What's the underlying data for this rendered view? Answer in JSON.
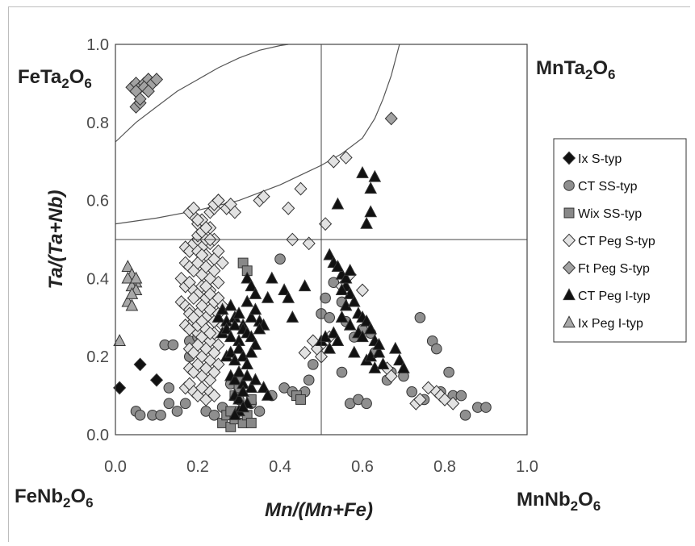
{
  "chart_data": {
    "type": "scatter",
    "title": "",
    "xlabel": "Mn/(Mn+Fe)",
    "ylabel": "Ta/(Ta+Nb)",
    "xlim": [
      0,
      1
    ],
    "ylim": [
      0,
      1
    ],
    "x_ticks": [
      "0.0",
      "0.2",
      "0.4",
      "0.6",
      "0.8",
      "1.0"
    ],
    "y_ticks": [
      "0.0",
      "0.2",
      "0.4",
      "0.6",
      "0.8",
      "1.0"
    ],
    "grid": false,
    "legend_position": "right",
    "corner_labels": {
      "top_left": {
        "base": "FeTa",
        "sub1": "2",
        "mid": "O",
        "sub2": "6"
      },
      "top_right": {
        "base": "MnTa",
        "sub1": "2",
        "mid": "O",
        "sub2": "6"
      },
      "bottom_left": {
        "base": "FeNb",
        "sub1": "2",
        "mid": "O",
        "sub2": "6"
      },
      "bottom_right": {
        "base": "MnNb",
        "sub1": "2",
        "mid": "O",
        "sub2": "6"
      }
    },
    "reference_lines": {
      "x": 0.5,
      "y": 0.5
    },
    "boundary_curves": [
      {
        "x": [
          0.0,
          0.05,
          0.1,
          0.15,
          0.2,
          0.25,
          0.3,
          0.35,
          0.4,
          0.42
        ],
        "y": [
          0.75,
          0.8,
          0.84,
          0.88,
          0.91,
          0.94,
          0.965,
          0.985,
          0.997,
          1.0
        ]
      },
      {
        "x": [
          0.0,
          0.1,
          0.2,
          0.3,
          0.4,
          0.5,
          0.55,
          0.6,
          0.63,
          0.65,
          0.67,
          0.68,
          0.69
        ],
        "y": [
          0.54,
          0.555,
          0.575,
          0.6,
          0.64,
          0.69,
          0.72,
          0.76,
          0.81,
          0.86,
          0.92,
          0.96,
          1.0
        ]
      }
    ],
    "series": [
      {
        "name": "Ix S-typ",
        "marker": "diamond",
        "fill": "#111111",
        "x": [
          0.01,
          0.06,
          0.1
        ],
        "y": [
          0.12,
          0.18,
          0.14
        ]
      },
      {
        "name": "CT SS-typ",
        "marker": "circle",
        "fill": "#8f8f8f",
        "x": [
          0.05,
          0.06,
          0.09,
          0.11,
          0.12,
          0.13,
          0.14,
          0.15,
          0.17,
          0.18,
          0.2,
          0.22,
          0.24,
          0.26,
          0.28,
          0.3,
          0.33,
          0.35,
          0.38,
          0.4,
          0.41,
          0.43,
          0.46,
          0.47,
          0.48,
          0.5,
          0.51,
          0.52,
          0.53,
          0.55,
          0.56,
          0.57,
          0.58,
          0.59,
          0.6,
          0.62,
          0.63,
          0.66,
          0.67,
          0.7,
          0.72,
          0.74,
          0.75,
          0.77,
          0.78,
          0.79,
          0.81,
          0.82,
          0.84,
          0.85,
          0.88,
          0.9,
          0.13,
          0.18,
          0.55,
          0.61
        ],
        "y": [
          0.06,
          0.05,
          0.05,
          0.05,
          0.23,
          0.08,
          0.23,
          0.06,
          0.08,
          0.24,
          0.25,
          0.06,
          0.05,
          0.07,
          0.13,
          0.09,
          0.08,
          0.06,
          0.1,
          0.45,
          0.12,
          0.11,
          0.11,
          0.14,
          0.18,
          0.31,
          0.35,
          0.3,
          0.39,
          0.34,
          0.29,
          0.08,
          0.25,
          0.09,
          0.27,
          0.26,
          0.21,
          0.14,
          0.16,
          0.15,
          0.11,
          0.3,
          0.09,
          0.24,
          0.22,
          0.11,
          0.16,
          0.1,
          0.1,
          0.05,
          0.07,
          0.07,
          0.12,
          0.2,
          0.16,
          0.08
        ]
      },
      {
        "name": "Wix SS-typ",
        "marker": "square",
        "fill": "#888888",
        "x": [
          0.26,
          0.27,
          0.28,
          0.29,
          0.3,
          0.31,
          0.32,
          0.33,
          0.29,
          0.3,
          0.31,
          0.32,
          0.33,
          0.44,
          0.45,
          0.3,
          0.28
        ],
        "y": [
          0.03,
          0.05,
          0.02,
          0.04,
          0.06,
          0.03,
          0.05,
          0.03,
          0.1,
          0.14,
          0.44,
          0.42,
          0.09,
          0.1,
          0.09,
          0.12,
          0.06
        ]
      },
      {
        "name": "CT Peg S-typ",
        "marker": "diamond",
        "fill": "#e2e2e2",
        "x": [
          0.17,
          0.18,
          0.19,
          0.2,
          0.21,
          0.22,
          0.23,
          0.24,
          0.25,
          0.26,
          0.17,
          0.18,
          0.19,
          0.2,
          0.21,
          0.22,
          0.23,
          0.24,
          0.25,
          0.16,
          0.17,
          0.18,
          0.19,
          0.2,
          0.21,
          0.22,
          0.23,
          0.24,
          0.16,
          0.17,
          0.18,
          0.19,
          0.2,
          0.21,
          0.22,
          0.23,
          0.24,
          0.25,
          0.26,
          0.17,
          0.18,
          0.19,
          0.2,
          0.21,
          0.22,
          0.23,
          0.24,
          0.25,
          0.18,
          0.19,
          0.2,
          0.21,
          0.22,
          0.23,
          0.24,
          0.25,
          0.18,
          0.19,
          0.2,
          0.21,
          0.22,
          0.23,
          0.24,
          0.17,
          0.18,
          0.19,
          0.2,
          0.21,
          0.22,
          0.23,
          0.24,
          0.19,
          0.2,
          0.21,
          0.22,
          0.23,
          0.24,
          0.25,
          0.2,
          0.21,
          0.22,
          0.23,
          0.24,
          0.18,
          0.19,
          0.2,
          0.21,
          0.22,
          0.23,
          0.2,
          0.21,
          0.24,
          0.25,
          0.27,
          0.28,
          0.29,
          0.35,
          0.36,
          0.42,
          0.45,
          0.43,
          0.47,
          0.46,
          0.5,
          0.51,
          0.53,
          0.56,
          0.48,
          0.49,
          0.5,
          0.52,
          0.55,
          0.57,
          0.6,
          0.73,
          0.74,
          0.76,
          0.78,
          0.79,
          0.8,
          0.82,
          0.22,
          0.23,
          0.24,
          0.25,
          0.26,
          0.18,
          0.19,
          0.2,
          0.21,
          0.22,
          0.23,
          0.66,
          0.67
        ],
        "y": [
          0.48,
          0.47,
          0.49,
          0.5,
          0.48,
          0.46,
          0.49,
          0.45,
          0.47,
          0.44,
          0.44,
          0.43,
          0.42,
          0.44,
          0.41,
          0.43,
          0.4,
          0.42,
          0.39,
          0.4,
          0.38,
          0.39,
          0.37,
          0.36,
          0.38,
          0.35,
          0.37,
          0.34,
          0.34,
          0.33,
          0.32,
          0.35,
          0.31,
          0.33,
          0.3,
          0.32,
          0.29,
          0.31,
          0.28,
          0.28,
          0.27,
          0.29,
          0.26,
          0.25,
          0.27,
          0.24,
          0.26,
          0.23,
          0.22,
          0.21,
          0.23,
          0.2,
          0.22,
          0.19,
          0.21,
          0.18,
          0.17,
          0.16,
          0.18,
          0.15,
          0.17,
          0.14,
          0.16,
          0.12,
          0.13,
          0.11,
          0.1,
          0.12,
          0.09,
          0.11,
          0.1,
          0.56,
          0.54,
          0.55,
          0.53,
          0.57,
          0.58,
          0.6,
          0.51,
          0.52,
          0.5,
          0.53,
          0.5,
          0.57,
          0.58,
          0.55,
          0.52,
          0.53,
          0.5,
          0.47,
          0.46,
          0.59,
          0.6,
          0.58,
          0.59,
          0.57,
          0.6,
          0.61,
          0.58,
          0.63,
          0.5,
          0.49,
          0.21,
          0.23,
          0.54,
          0.7,
          0.71,
          0.24,
          0.22,
          0.2,
          0.25,
          0.38,
          0.41,
          0.37,
          0.08,
          0.09,
          0.12,
          0.11,
          0.1,
          0.09,
          0.08,
          0.38,
          0.36,
          0.34,
          0.35,
          0.33,
          0.31,
          0.3,
          0.28,
          0.29,
          0.27,
          0.26,
          0.17,
          0.15
        ]
      },
      {
        "name": "Ft Peg S-typ",
        "marker": "diamond",
        "fill": "#a2a2a2",
        "x": [
          0.04,
          0.05,
          0.06,
          0.07,
          0.08,
          0.09,
          0.1,
          0.05,
          0.06,
          0.07,
          0.08,
          0.05,
          0.06,
          0.67
        ],
        "y": [
          0.89,
          0.9,
          0.89,
          0.9,
          0.91,
          0.9,
          0.91,
          0.84,
          0.85,
          0.89,
          0.88,
          0.88,
          0.86,
          0.81
        ]
      },
      {
        "name": "CT Peg I-typ",
        "marker": "triangle",
        "fill": "#111111",
        "x": [
          0.25,
          0.26,
          0.27,
          0.28,
          0.29,
          0.3,
          0.31,
          0.32,
          0.33,
          0.34,
          0.35,
          0.36,
          0.37,
          0.26,
          0.27,
          0.28,
          0.29,
          0.3,
          0.31,
          0.32,
          0.33,
          0.34,
          0.35,
          0.27,
          0.28,
          0.29,
          0.3,
          0.31,
          0.32,
          0.33,
          0.28,
          0.29,
          0.3,
          0.31,
          0.32,
          0.33,
          0.34,
          0.29,
          0.3,
          0.31,
          0.32,
          0.3,
          0.31,
          0.29,
          0.32,
          0.33,
          0.34,
          0.38,
          0.41,
          0.42,
          0.43,
          0.46,
          0.5,
          0.51,
          0.52,
          0.53,
          0.54,
          0.55,
          0.56,
          0.57,
          0.58,
          0.59,
          0.6,
          0.61,
          0.62,
          0.63,
          0.64,
          0.65,
          0.55,
          0.56,
          0.57,
          0.58,
          0.59,
          0.6,
          0.61,
          0.62,
          0.63,
          0.64,
          0.52,
          0.53,
          0.54,
          0.55,
          0.56,
          0.57,
          0.61,
          0.62,
          0.54,
          0.6,
          0.62,
          0.63,
          0.68,
          0.69,
          0.7,
          0.36,
          0.37
        ],
        "y": [
          0.3,
          0.32,
          0.29,
          0.33,
          0.3,
          0.31,
          0.28,
          0.34,
          0.3,
          0.32,
          0.29,
          0.28,
          0.35,
          0.26,
          0.27,
          0.25,
          0.28,
          0.24,
          0.27,
          0.26,
          0.25,
          0.23,
          0.27,
          0.2,
          0.21,
          0.19,
          0.22,
          0.2,
          0.18,
          0.21,
          0.15,
          0.14,
          0.16,
          0.13,
          0.15,
          0.12,
          0.14,
          0.1,
          0.09,
          0.11,
          0.08,
          0.06,
          0.07,
          0.05,
          0.4,
          0.38,
          0.36,
          0.4,
          0.37,
          0.35,
          0.3,
          0.38,
          0.24,
          0.25,
          0.22,
          0.26,
          0.24,
          0.3,
          0.33,
          0.28,
          0.21,
          0.26,
          0.25,
          0.19,
          0.2,
          0.17,
          0.21,
          0.18,
          0.41,
          0.38,
          0.36,
          0.34,
          0.31,
          0.3,
          0.29,
          0.27,
          0.24,
          0.23,
          0.46,
          0.44,
          0.43,
          0.37,
          0.4,
          0.42,
          0.54,
          0.57,
          0.59,
          0.67,
          0.63,
          0.66,
          0.22,
          0.19,
          0.17,
          0.12,
          0.1
        ]
      },
      {
        "name": "Ix Peg I-typ",
        "marker": "triangle",
        "fill": "#a8a8a8",
        "x": [
          0.01,
          0.03,
          0.04,
          0.05,
          0.03,
          0.04,
          0.05,
          0.03,
          0.04,
          0.05,
          0.04
        ],
        "y": [
          0.24,
          0.43,
          0.41,
          0.39,
          0.4,
          0.38,
          0.37,
          0.34,
          0.36,
          0.4,
          0.33
        ]
      }
    ]
  }
}
